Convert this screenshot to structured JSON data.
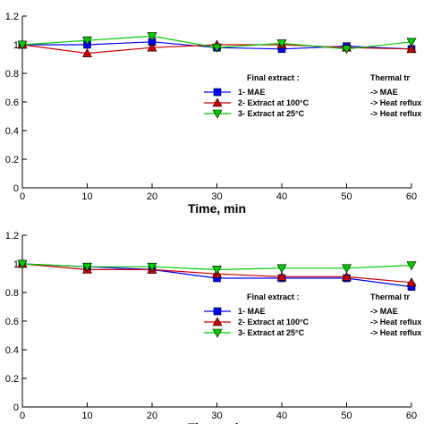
{
  "chart_data": [
    {
      "type": "line",
      "x": [
        0,
        10,
        20,
        30,
        40,
        50,
        60
      ],
      "xlabel": "Time, min",
      "ylabel": "",
      "xlim": [
        0,
        60
      ],
      "ylim": [
        0,
        1.2
      ],
      "xticks": [
        "0",
        "10",
        "20",
        "30",
        "40",
        "50",
        "60"
      ],
      "yticks": [
        "0",
        "0.2",
        "0.4",
        "0.6",
        "0.8",
        "1",
        "1.2"
      ],
      "grid": false,
      "legend_position": "center-right",
      "legend_header_left": "Final extract :",
      "legend_header_right": "Thermal tr",
      "series": [
        {
          "name": "1- MAE",
          "treatment": "-> MAE",
          "color": "#0000ff",
          "marker": "square",
          "values": [
            1.0,
            1.0,
            1.02,
            0.98,
            0.97,
            0.99,
            0.97
          ]
        },
        {
          "name": "2- Extract at 100°C",
          "treatment": "-> Heat reflux",
          "color": "#cc0000",
          "marker": "triangle-up",
          "values": [
            1.0,
            0.94,
            0.98,
            1.0,
            1.0,
            0.98,
            0.97
          ]
        },
        {
          "name": "3- Extract at 25°C",
          "treatment": "-> Heat reflux",
          "color": "#00cc00",
          "marker": "triangle-down",
          "values": [
            1.0,
            1.03,
            1.06,
            0.98,
            1.01,
            0.97,
            1.02
          ]
        }
      ]
    },
    {
      "type": "line",
      "x": [
        0,
        10,
        20,
        30,
        40,
        50,
        60
      ],
      "xlabel": "Time, min",
      "ylabel": "",
      "xlim": [
        0,
        60
      ],
      "ylim": [
        0,
        1.2
      ],
      "xticks": [
        "0",
        "10",
        "20",
        "30",
        "40",
        "50",
        "60"
      ],
      "yticks": [
        "0",
        "0.2",
        "0.4",
        "0.6",
        "0.8",
        "1",
        "1.2"
      ],
      "grid": false,
      "legend_position": "center-right",
      "legend_header_left": "Final extract :",
      "legend_header_right": "Thermal tr",
      "series": [
        {
          "name": "1- MAE",
          "treatment": "-> MAE",
          "color": "#0000ff",
          "marker": "square",
          "values": [
            1.0,
            0.98,
            0.96,
            0.9,
            0.9,
            0.9,
            0.84
          ]
        },
        {
          "name": "2- Extract at 100°C",
          "treatment": "-> Heat reflux",
          "color": "#cc0000",
          "marker": "triangle-up",
          "values": [
            1.0,
            0.96,
            0.96,
            0.93,
            0.91,
            0.91,
            0.87
          ]
        },
        {
          "name": "3- Extract at 25°C",
          "treatment": "-> Heat reflux",
          "color": "#00cc00",
          "marker": "triangle-down",
          "values": [
            1.0,
            0.98,
            0.98,
            0.96,
            0.97,
            0.97,
            0.99
          ]
        }
      ]
    }
  ]
}
